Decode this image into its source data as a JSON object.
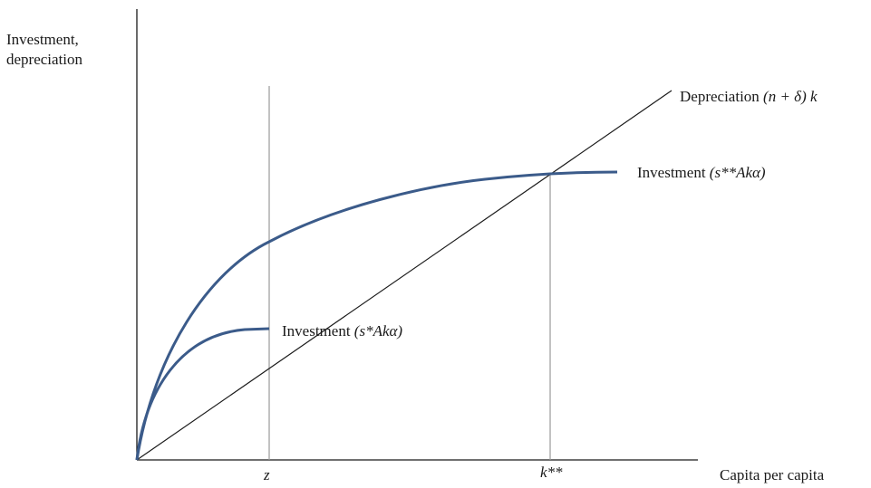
{
  "axes": {
    "y_label_line1": "Investment,",
    "y_label_line2": "depreciation",
    "x_label": "Capita per capita",
    "tick_z": "z",
    "tick_kss": "k**"
  },
  "curves": {
    "depreciation": {
      "text": "Depreciation",
      "formula": "(n + δ) k"
    },
    "investment_high": {
      "text": "Investment",
      "formula": "(s**Akα)"
    },
    "investment_low": {
      "text": "Investment",
      "formula": "(s*Akα)"
    }
  },
  "colors": {
    "curve": "#3b5b8a",
    "axis": "#1a1a1a",
    "guide": "#9a9a9a"
  }
}
